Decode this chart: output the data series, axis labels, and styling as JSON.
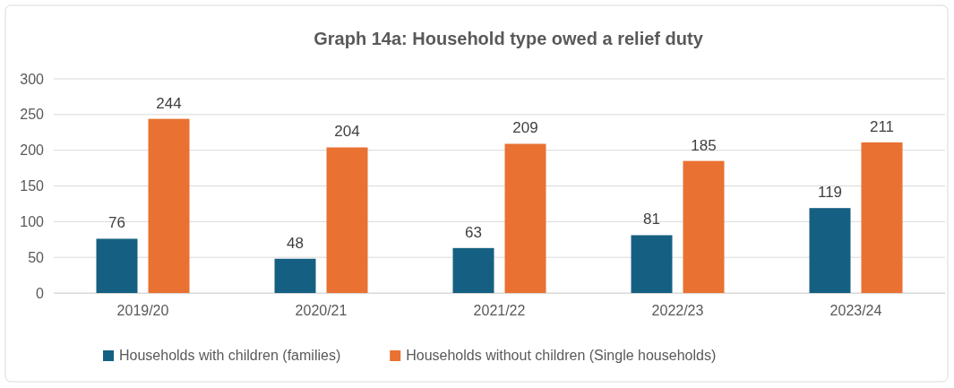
{
  "chart_data": {
    "type": "bar",
    "title": "Graph 14a: Household type owed a relief duty",
    "categories": [
      "2019/20",
      "2020/21",
      "2021/22",
      "2022/23",
      "2023/24"
    ],
    "series": [
      {
        "name": "Households with children (families)",
        "color": "#156082",
        "values": [
          76,
          48,
          63,
          81,
          119
        ]
      },
      {
        "name": "Households without children (Single households)",
        "color": "#e97132",
        "values": [
          244,
          204,
          209,
          185,
          211
        ]
      }
    ],
    "ylim": [
      0,
      300
    ],
    "yticks": [
      0,
      50,
      100,
      150,
      200,
      250,
      300
    ],
    "grid": "y",
    "legend": "bottom",
    "data_labels": true
  }
}
